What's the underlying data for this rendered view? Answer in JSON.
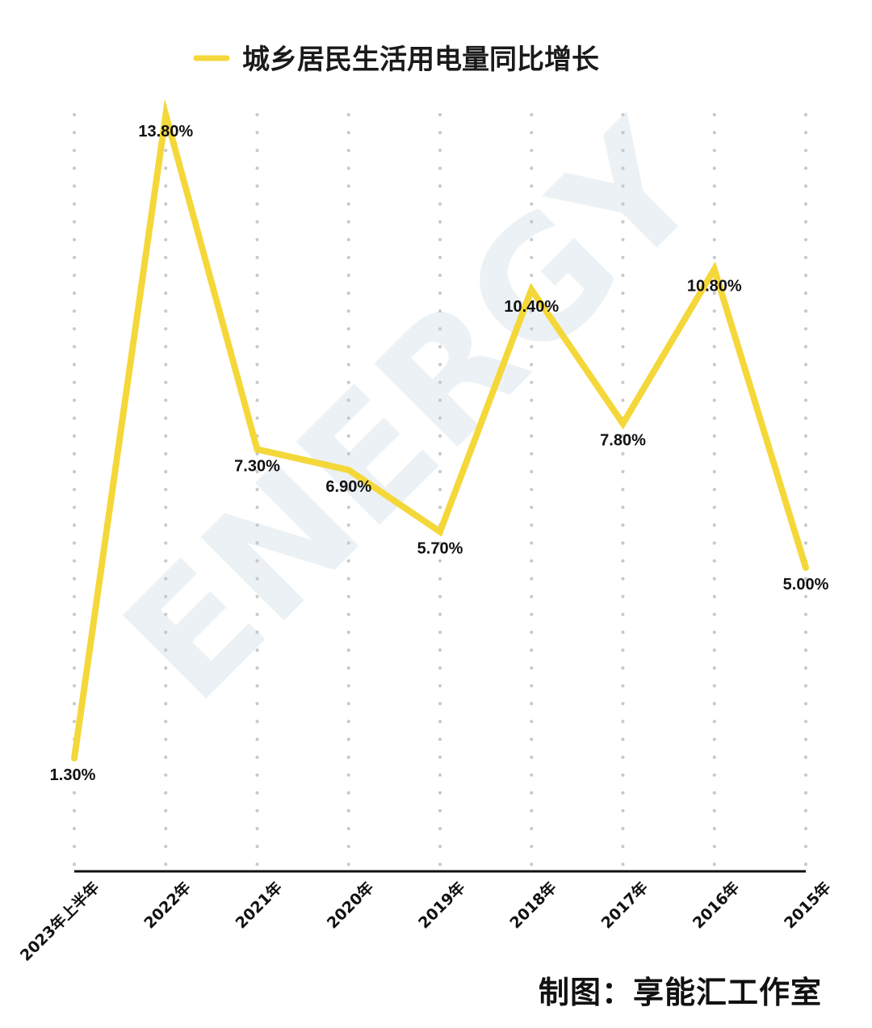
{
  "chart_data": {
    "type": "line",
    "legend_position": "top-center",
    "grid": "vertical-dotted",
    "categories": [
      "2023年上半年",
      "2022年",
      "2021年",
      "2020年",
      "2019年",
      "2018年",
      "2017年",
      "2016年",
      "2015年"
    ],
    "series": [
      {
        "name": "城乡居民生活用电量同比增长",
        "color": "#f4d83a",
        "values": [
          1.3,
          13.8,
          7.3,
          6.9,
          5.7,
          10.4,
          7.8,
          10.8,
          5.0
        ],
        "labels": [
          "1.30%",
          "13.80%",
          "7.30%",
          "6.90%",
          "5.70%",
          "10.40%",
          "7.80%",
          "10.80%",
          "5.00%"
        ]
      }
    ],
    "ylim": [
      0.5,
      13.8
    ]
  },
  "credit": "制图：享能汇工作室",
  "watermark": "ENERGY"
}
